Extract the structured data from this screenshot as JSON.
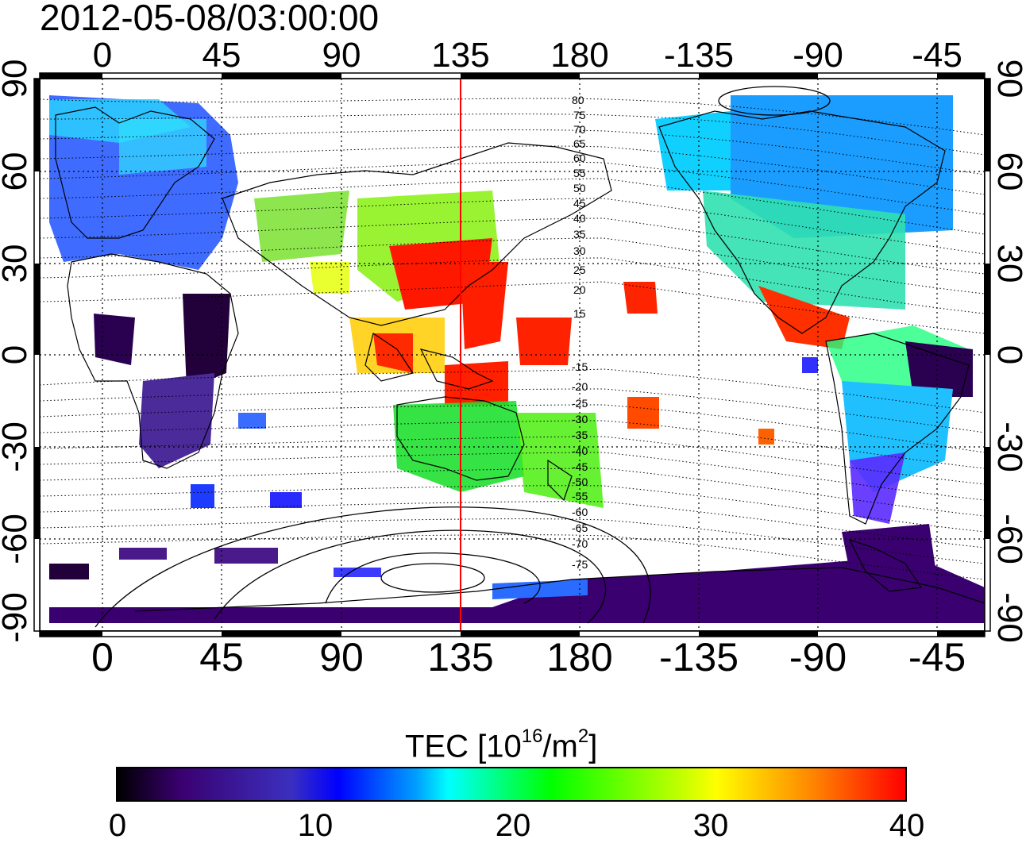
{
  "title": "2012-05-08/03:00:00",
  "map": {
    "top_lon_ticks": [
      "0",
      "45",
      "90",
      "135",
      "180",
      "-135",
      "-90",
      "-45"
    ],
    "bottom_lon_ticks": [
      "0",
      "45",
      "90",
      "135",
      "180",
      "-135",
      "-90",
      "-45"
    ],
    "left_lat_ticks": [
      "90",
      "60",
      "30",
      "0",
      "-30",
      "-60",
      "-90"
    ],
    "right_lat_ticks": [
      "90",
      "60",
      "30",
      "0",
      "-30",
      "-60",
      "-90"
    ],
    "meridian_marker_lon": 135,
    "contour_labels": [
      "80",
      "75",
      "70",
      "65",
      "60",
      "55",
      "50",
      "45",
      "40",
      "35",
      "30",
      "25",
      "20",
      "15",
      "-15",
      "-20",
      "-25",
      "-30",
      "-35",
      "-40",
      "-45",
      "-50",
      "-55",
      "-60",
      "-65",
      "-70",
      "-75"
    ],
    "colors": {
      "marker_line": "#ff0000",
      "grid": "#000000"
    }
  },
  "colorbar": {
    "title_prefix": "TEC  [10",
    "title_exp": "16",
    "title_mid": "/m",
    "title_exp2": "2",
    "title_suffix": "]",
    "min": 0,
    "max": 40,
    "tick_labels": [
      "0",
      "10",
      "20",
      "30",
      "40"
    ],
    "stops": [
      "#000000",
      "#4b0082",
      "#0000ff",
      "#00ffff",
      "#00ff00",
      "#ffff00",
      "#ff8c00",
      "#ff0000"
    ]
  }
}
